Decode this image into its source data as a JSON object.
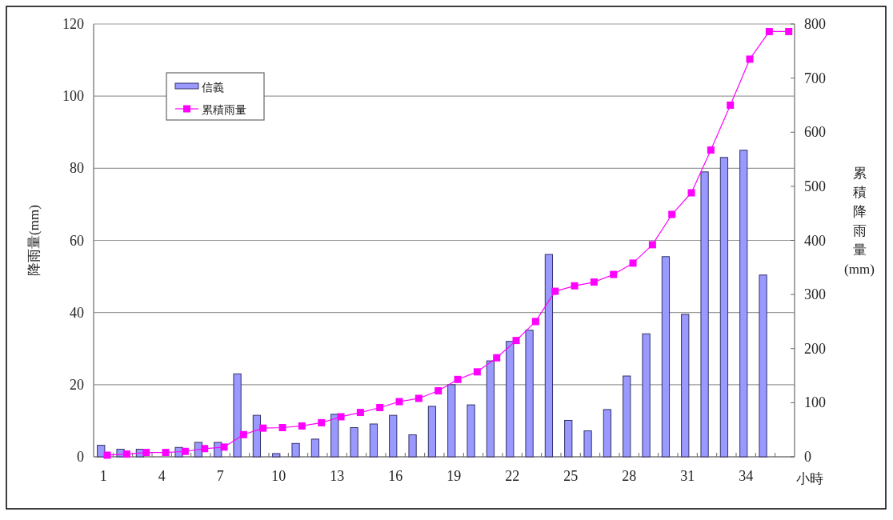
{
  "chart_data": {
    "type": "bar",
    "xlabel": "小時",
    "ylabel": "降雨量(mm)",
    "y2label": "累積降雨量(mm)",
    "categories": [
      "1",
      null,
      null,
      "4",
      null,
      null,
      "7",
      null,
      null,
      "10",
      null,
      null,
      "13",
      null,
      null,
      "16",
      null,
      null,
      "19",
      null,
      null,
      "22",
      null,
      null,
      "25",
      null,
      null,
      "28",
      null,
      null,
      "31",
      null,
      null,
      "34",
      null,
      null
    ],
    "ylim": [
      0,
      120
    ],
    "yticks": [
      0,
      20,
      40,
      60,
      80,
      100,
      120
    ],
    "y2lim": [
      0,
      800
    ],
    "y2ticks": [
      0,
      100,
      200,
      300,
      400,
      500,
      600,
      700,
      800
    ],
    "grid": "y",
    "legend": "top left",
    "series": [
      {
        "name": "信義",
        "color": "#9999ff",
        "values": [
          3.2,
          2.1,
          2.1,
          0,
          2.6,
          4,
          4,
          23,
          11.5,
          0.9,
          3.7,
          4.9,
          11.8,
          8.1,
          9.1,
          11.5,
          6.1,
          14,
          20,
          14.4,
          26.6,
          32,
          35.1,
          56.1,
          10.1,
          7.2,
          13.1,
          22.4,
          34.1,
          55.5,
          39.5,
          79,
          83,
          85,
          50.4,
          null
        ]
      },
      {
        "name": "累積雨量",
        "type": "line",
        "axis": "y2",
        "color": "#ff00ff",
        "marker": "square",
        "line_style": "solid",
        "values": [
          3,
          5,
          8,
          8,
          10,
          15,
          18,
          41,
          53,
          54,
          57,
          63,
          74,
          82,
          91,
          102,
          108,
          122,
          143,
          157,
          183,
          215,
          250,
          306,
          316,
          323,
          337,
          358,
          392,
          448,
          488,
          567,
          650,
          735,
          786,
          786
        ]
      }
    ]
  }
}
